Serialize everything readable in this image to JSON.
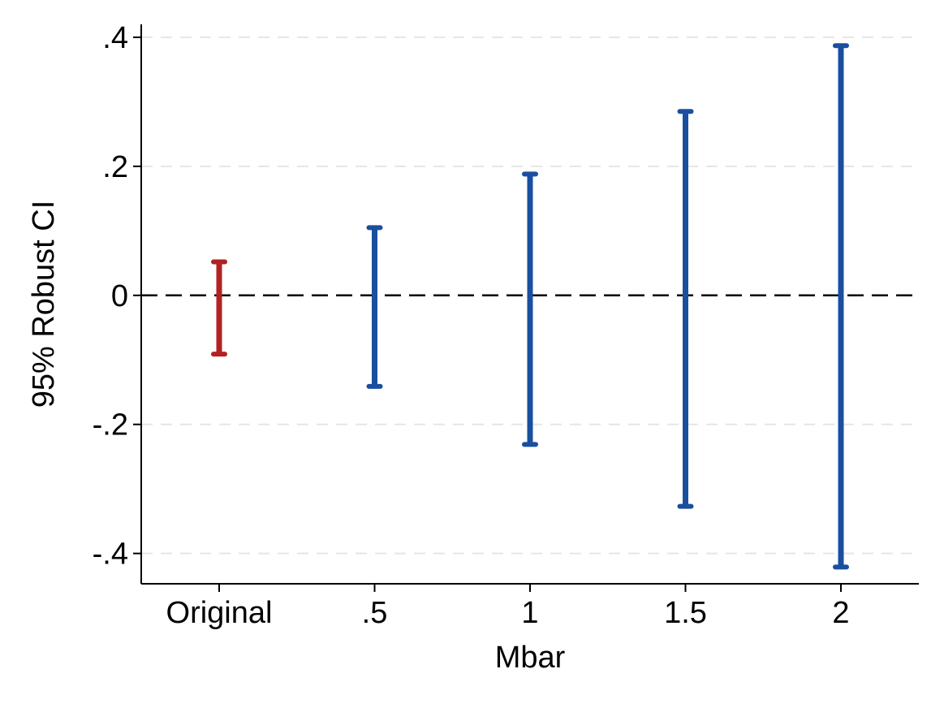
{
  "chart_data": {
    "type": "errorbar",
    "title": "",
    "xlabel": "Mbar",
    "ylabel": "95% Robust CI",
    "categories": [
      "Original",
      ".5",
      "1",
      "1.5",
      "2"
    ],
    "intervals": [
      {
        "category": "Original",
        "lower": -0.091,
        "upper": 0.052,
        "color": "#b22222"
      },
      {
        "category": ".5",
        "lower": -0.141,
        "upper": 0.105,
        "color": "#1a4fa0"
      },
      {
        "category": "1",
        "lower": -0.231,
        "upper": 0.188,
        "color": "#1a4fa0"
      },
      {
        "category": "1.5",
        "lower": -0.327,
        "upper": 0.285,
        "color": "#1a4fa0"
      },
      {
        "category": "2",
        "lower": -0.421,
        "upper": 0.387,
        "color": "#1a4fa0"
      }
    ],
    "ylim": [
      -0.447,
      0.42
    ],
    "yticks": [
      {
        "value": 0.4,
        "label": ".4"
      },
      {
        "value": 0.2,
        "label": ".2"
      },
      {
        "value": 0,
        "label": "0"
      },
      {
        "value": -0.2,
        "label": "-.2"
      },
      {
        "value": -0.4,
        "label": "-.4"
      }
    ],
    "reference_line": {
      "value": 0,
      "style": "dashed",
      "color": "#000000"
    },
    "grid": true,
    "grid_color": "#e6e6e6",
    "legend": "none"
  }
}
